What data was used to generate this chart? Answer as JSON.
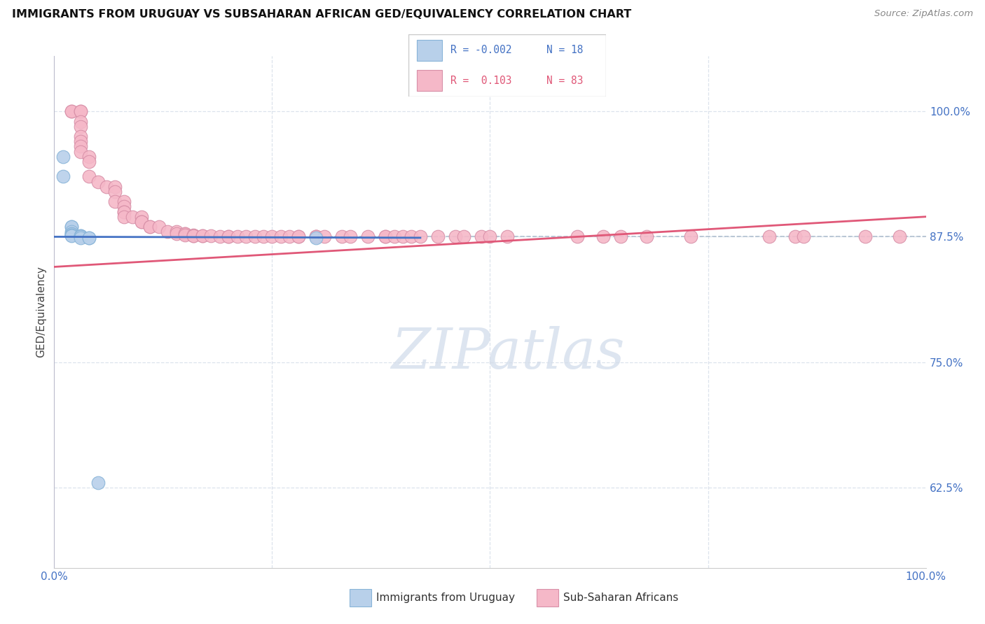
{
  "title": "IMMIGRANTS FROM URUGUAY VS SUBSAHARAN AFRICAN GED/EQUIVALENCY CORRELATION CHART",
  "source": "Source: ZipAtlas.com",
  "ylabel": "GED/Equivalency",
  "ytick_labels": [
    "100.0%",
    "87.5%",
    "75.0%",
    "62.5%"
  ],
  "ytick_values": [
    1.0,
    0.875,
    0.75,
    0.625
  ],
  "xlim": [
    0.0,
    1.0
  ],
  "ylim": [
    0.545,
    1.055
  ],
  "watermark": "ZIPatlas",
  "color_uruguay": "#b8d0ea",
  "color_subsaharan": "#f5b8c8",
  "color_line_uruguay": "#4472C4",
  "color_line_subsaharan": "#e05878",
  "color_dashed": "#aabbcc",
  "uruguay_x": [
    0.01,
    0.01,
    0.02,
    0.02,
    0.02,
    0.02,
    0.02,
    0.02,
    0.02,
    0.02,
    0.03,
    0.03,
    0.03,
    0.03,
    0.04,
    0.04,
    0.3,
    0.05
  ],
  "uruguay_y": [
    0.955,
    0.935,
    0.885,
    0.885,
    0.88,
    0.878,
    0.878,
    0.877,
    0.877,
    0.876,
    0.876,
    0.876,
    0.875,
    0.874,
    0.874,
    0.874,
    0.874,
    0.63
  ],
  "subsaharan_x": [
    0.02,
    0.02,
    0.03,
    0.03,
    0.03,
    0.03,
    0.03,
    0.03,
    0.03,
    0.03,
    0.04,
    0.04,
    0.04,
    0.05,
    0.06,
    0.07,
    0.07,
    0.07,
    0.08,
    0.08,
    0.08,
    0.08,
    0.08,
    0.09,
    0.1,
    0.1,
    0.1,
    0.11,
    0.11,
    0.12,
    0.13,
    0.14,
    0.14,
    0.15,
    0.15,
    0.15,
    0.16,
    0.16,
    0.16,
    0.17,
    0.17,
    0.18,
    0.19,
    0.2,
    0.2,
    0.21,
    0.22,
    0.23,
    0.24,
    0.25,
    0.26,
    0.27,
    0.28,
    0.28,
    0.3,
    0.3,
    0.3,
    0.31,
    0.33,
    0.34,
    0.36,
    0.38,
    0.38,
    0.39,
    0.4,
    0.41,
    0.42,
    0.44,
    0.46,
    0.47,
    0.49,
    0.5,
    0.52,
    0.6,
    0.63,
    0.65,
    0.68,
    0.73,
    0.82,
    0.85,
    0.86,
    0.93,
    0.97
  ],
  "subsaharan_y": [
    1.0,
    1.0,
    1.0,
    1.0,
    0.99,
    0.985,
    0.975,
    0.97,
    0.965,
    0.96,
    0.955,
    0.95,
    0.935,
    0.93,
    0.925,
    0.925,
    0.92,
    0.91,
    0.91,
    0.905,
    0.9,
    0.9,
    0.895,
    0.895,
    0.895,
    0.89,
    0.89,
    0.885,
    0.885,
    0.885,
    0.88,
    0.88,
    0.878,
    0.878,
    0.878,
    0.877,
    0.877,
    0.876,
    0.876,
    0.876,
    0.876,
    0.876,
    0.875,
    0.875,
    0.875,
    0.875,
    0.875,
    0.875,
    0.875,
    0.875,
    0.875,
    0.875,
    0.875,
    0.875,
    0.875,
    0.875,
    0.875,
    0.875,
    0.875,
    0.875,
    0.875,
    0.875,
    0.875,
    0.875,
    0.875,
    0.875,
    0.875,
    0.875,
    0.875,
    0.875,
    0.875,
    0.875,
    0.875,
    0.875,
    0.875,
    0.875,
    0.875,
    0.875,
    0.875,
    0.875,
    0.875,
    0.875,
    0.875
  ],
  "sub_line_x": [
    0.0,
    1.0
  ],
  "sub_line_y_start": 0.845,
  "sub_line_y_end": 0.895,
  "uru_line_x": [
    0.0,
    0.42
  ],
  "uru_line_y_start": 0.875,
  "uru_line_y_end": 0.874
}
